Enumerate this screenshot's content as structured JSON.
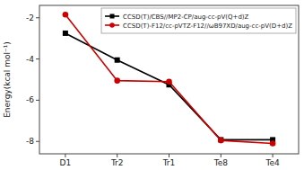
{
  "chart_data": {
    "type": "line",
    "categories": [
      "D1",
      "Tr2",
      "Tr1",
      "Te8",
      "Te4"
    ],
    "series": [
      {
        "name": "CCSD(T)/CBS//MP2-CP/aug-cc-pV(Q+d)Z",
        "color": "#000000",
        "marker": "square",
        "values": [
          -2.75,
          -4.05,
          -5.25,
          -7.92,
          -7.92
        ]
      },
      {
        "name": "CCSD(T)-F12/cc-pVTZ-F12//ωB97XD/aug-cc-pV(D+d)Z",
        "color": "#cc0000",
        "marker": "circle",
        "values": [
          -1.85,
          -5.05,
          -5.1,
          -7.95,
          -8.1
        ]
      }
    ],
    "y_label": "Energy(kcal mol⁻¹)",
    "ylim": [
      -8.6,
      -1.4
    ],
    "yticks": [
      -8,
      -6,
      -4,
      -2
    ],
    "grid": false,
    "legend": "upper right"
  }
}
